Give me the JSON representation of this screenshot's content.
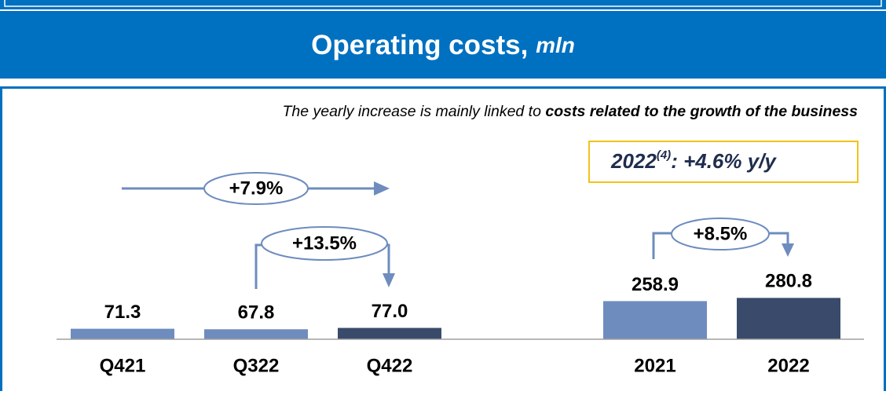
{
  "chart_data": {
    "type": "bar",
    "title": "Operating costs, ",
    "title_unit": "mln",
    "subtitle_parts": [
      "The yearly increase is mainly linked to ",
      "costs related to the growth of the business"
    ],
    "categories": [
      "Q421",
      "Q322",
      "Q422",
      "2021",
      "2022"
    ],
    "values": [
      71.3,
      67.8,
      77.0,
      258.9,
      280.8
    ],
    "value_labels": [
      "71.3",
      "67.8",
      "77.0",
      "258.9",
      "280.8"
    ],
    "colors": [
      "#6e8cbe",
      "#6e8cbe",
      "#3a4a6b",
      "#6e8cbe",
      "#3a4a6b"
    ],
    "ylim": [
      0,
      1600
    ],
    "annotations": [
      "+7.9%",
      "+13.5%",
      "+8.5%"
    ],
    "highlight_parts": [
      "2022",
      "(4)",
      ": +4.6% y/y"
    ]
  }
}
